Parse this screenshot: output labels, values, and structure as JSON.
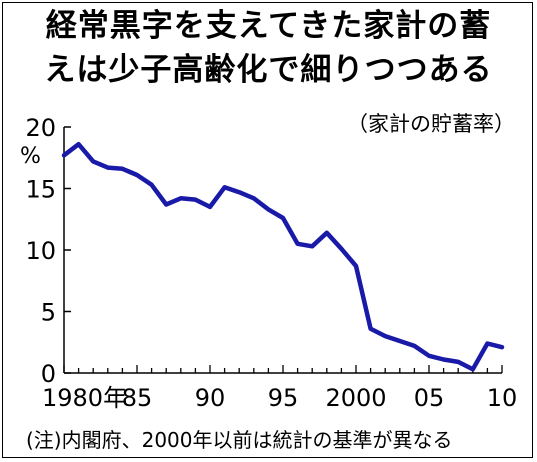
{
  "title_line1": "経常黒字を支えてきた家計の蓄",
  "title_line2": "えは少子高齢化で細りつつある",
  "subtitle": "（家計の貯蓄率）",
  "note": "(注)内閣府、2000年以前は統計の基準が異なる",
  "chart_data": {
    "type": "line",
    "title": "経常黒字を支えてきた家計の蓄えは少子高齢化で細りつつある",
    "subtitle": "（家計の貯蓄率）",
    "ylabel": "%",
    "xlim": [
      1980,
      2010
    ],
    "ylim": [
      0,
      20
    ],
    "y_ticks": [
      0,
      5,
      10,
      15,
      20
    ],
    "x_ticks": [
      {
        "value": 1980,
        "label": "1980年"
      },
      {
        "value": 1985,
        "label": "85"
      },
      {
        "value": 1990,
        "label": "90"
      },
      {
        "value": 1995,
        "label": "95"
      },
      {
        "value": 2000,
        "label": "2000"
      },
      {
        "value": 2005,
        "label": "05"
      },
      {
        "value": 2010,
        "label": "10"
      }
    ],
    "grid": false,
    "line_color": "#1a1aa8",
    "x": [
      1980,
      1981,
      1982,
      1983,
      1984,
      1985,
      1986,
      1987,
      1988,
      1989,
      1990,
      1991,
      1992,
      1993,
      1994,
      1995,
      1996,
      1997,
      1998,
      1999,
      2000,
      2001,
      2002,
      2003,
      2004,
      2005,
      2006,
      2007,
      2008,
      2009,
      2010
    ],
    "values": [
      17.7,
      18.6,
      17.2,
      16.7,
      16.6,
      16.1,
      15.3,
      13.7,
      14.2,
      14.1,
      13.5,
      15.1,
      14.7,
      14.2,
      13.3,
      12.6,
      10.5,
      10.3,
      11.4,
      10.1,
      8.7,
      3.6,
      3.0,
      2.6,
      2.2,
      1.4,
      1.1,
      0.9,
      0.3,
      2.4,
      2.1
    ]
  }
}
